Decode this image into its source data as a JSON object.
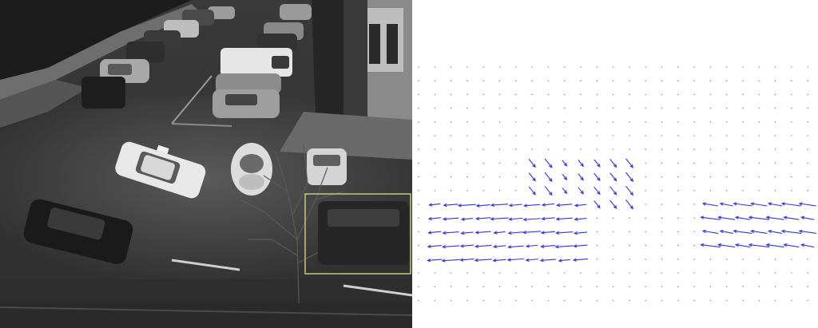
{
  "figure": {
    "left_panel": {
      "kind": "grayscale-photo",
      "subject": "street-intersection-with-parked-and-moving-cars",
      "highlight_box_color": "#c8c87a"
    },
    "right_panel": {
      "kind": "optical-flow-vector-field",
      "vector_color": "#3333dd",
      "grid_dot_color": "#8888cc",
      "background": "#ffffff"
    }
  }
}
